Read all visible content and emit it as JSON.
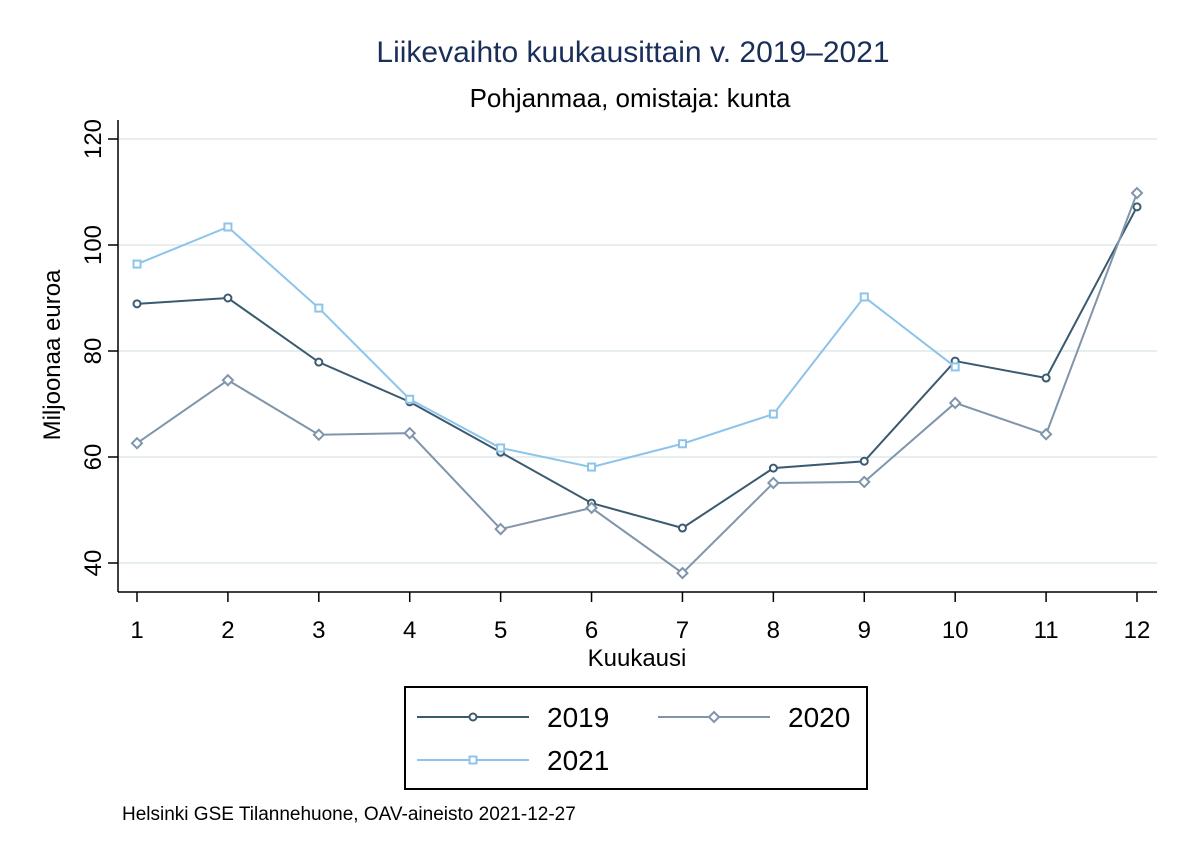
{
  "chart_data": {
    "type": "line",
    "title": "Liikevaihto kuukausittain v. 2019–2021",
    "subtitle": "Pohjanmaa, omistaja: kunta",
    "xlabel": "Kuukausi",
    "ylabel": "Miljoonaa euroa",
    "x": [
      1,
      2,
      3,
      4,
      5,
      6,
      7,
      8,
      9,
      10,
      11,
      12
    ],
    "xticks": [
      "1",
      "2",
      "3",
      "4",
      "5",
      "6",
      "7",
      "8",
      "9",
      "10",
      "11",
      "12"
    ],
    "yticks": [
      "40",
      "60",
      "80",
      "100",
      "120"
    ],
    "ylim": [
      40,
      120
    ],
    "grid": true,
    "legend": "bottom",
    "series": [
      {
        "name": "2019",
        "color": "#3a5a70",
        "marker": "circle",
        "values": [
          88.9,
          90.0,
          77.9,
          70.4,
          60.9,
          51.3,
          46.6,
          57.9,
          59.2,
          78.1,
          74.9,
          107.2
        ]
      },
      {
        "name": "2020",
        "color": "#8095ab",
        "marker": "diamond",
        "values": [
          62.6,
          74.5,
          64.2,
          64.5,
          46.4,
          50.4,
          38.1,
          55.1,
          55.3,
          70.2,
          64.3,
          109.8
        ]
      },
      {
        "name": "2021",
        "color": "#8cc4ea",
        "marker": "square",
        "values": [
          96.4,
          103.4,
          88.1,
          70.9,
          61.7,
          58.1,
          62.5,
          68.1,
          90.2,
          77.0,
          null,
          null
        ]
      }
    ],
    "note": "Helsinki GSE Tilannehuone, OAV-aineisto 2021-12-27"
  }
}
